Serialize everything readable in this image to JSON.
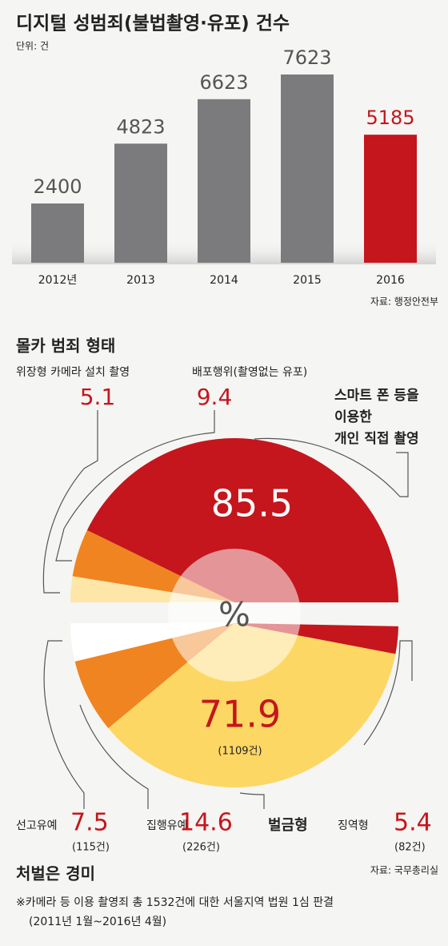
{
  "chart_data": [
    {
      "type": "bar",
      "title": "디지털 성범죄(불법촬영·유포) 건수",
      "subtitle": "단위: 건",
      "categories": [
        "2012년",
        "2013",
        "2014",
        "2015",
        "2016"
      ],
      "values": [
        2400,
        4823,
        6623,
        7623,
        5185
      ],
      "colors": [
        "#7b7b7d",
        "#7b7b7d",
        "#7b7b7d",
        "#7b7b7d",
        "#c4161c"
      ],
      "source": "자료: 행정안전부"
    },
    {
      "type": "split-pie",
      "center_label": "%",
      "top": {
        "title": "몰카 범죄 형태",
        "slices": [
          {
            "label": [
              "위장형 카메라 설치 촬영"
            ],
            "value": 5.1,
            "color": "#fde6a8"
          },
          {
            "label": [
              "배포행위(촬영없는 유포)"
            ],
            "value": 9.4,
            "color": "#f08421"
          },
          {
            "label": [
              "스마트 폰 등을",
              "이용한",
              "개인 직접 촬영"
            ],
            "value": 85.5,
            "color": "#c4161c"
          }
        ]
      },
      "bottom": {
        "title": "처벌은 경미",
        "slices": [
          {
            "label": [
              "선고유예"
            ],
            "value": 7.5,
            "count_label": "(115건)",
            "color": "#ffffff"
          },
          {
            "label": [
              "집행유예"
            ],
            "value": 14.6,
            "count_label": "(226건)",
            "color": "#f08421"
          },
          {
            "label": [
              "벌금형"
            ],
            "value": 71.9,
            "count_label": "(1109건)",
            "color": "#fdd764"
          },
          {
            "label": [
              "징역형"
            ],
            "value": 5.4,
            "count_label": "(82건)",
            "color": "#c4161c"
          }
        ]
      },
      "source": "자료: 국무총리실",
      "note": [
        "※카메라 등 이용 촬영죄 총 1532건에 대한 서울지역 법원 1심 판결",
        "(2011년 1월~2016년 4월)"
      ]
    }
  ]
}
